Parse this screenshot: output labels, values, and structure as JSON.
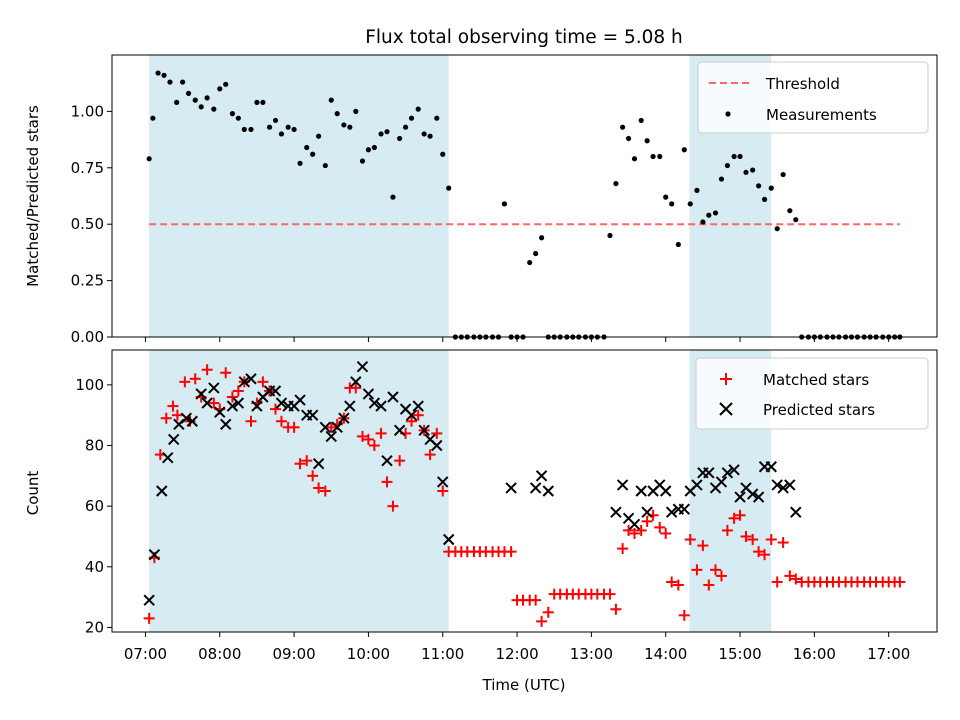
{
  "title": "Flux total observing time = 5.08 h",
  "xlabel": "Time (UTC)",
  "xticks": [
    {
      "t": 7,
      "label": "07:00"
    },
    {
      "t": 8,
      "label": "08:00"
    },
    {
      "t": 9,
      "label": "09:00"
    },
    {
      "t": 10,
      "label": "10:00"
    },
    {
      "t": 11,
      "label": "11:00"
    },
    {
      "t": 12,
      "label": "12:00"
    },
    {
      "t": 13,
      "label": "13:00"
    },
    {
      "t": 14,
      "label": "14:00"
    },
    {
      "t": 15,
      "label": "15:00"
    },
    {
      "t": 16,
      "label": "16:00"
    },
    {
      "t": 17,
      "label": "17:00"
    }
  ],
  "colors": {
    "shade": "#add8e6",
    "threshold": "#ff6666",
    "measurements": "#000000",
    "matched": "#ff0000",
    "predicted": "#000000"
  },
  "chart_data": [
    {
      "type": "scatter",
      "panel": "top",
      "ylabel": "Matched/Predicted stars",
      "ylim": [
        0,
        1.25
      ],
      "yticks": [
        "0.00",
        "0.25",
        "0.50",
        "0.75",
        "1.00"
      ],
      "xlim": [
        6.55,
        17.65
      ],
      "shaded_intervals": [
        [
          7.05,
          11.08
        ],
        [
          14.32,
          15.42
        ]
      ],
      "threshold": {
        "name": "Threshold",
        "y": 0.5,
        "x": [
          7.05,
          17.15
        ]
      },
      "legend": {
        "placement": "top-right",
        "entries": [
          "Threshold",
          "Measurements"
        ]
      },
      "series": [
        {
          "name": "Measurements",
          "x": [
            7.05,
            7.1,
            7.17,
            7.25,
            7.33,
            7.42,
            7.5,
            7.58,
            7.67,
            7.75,
            7.83,
            7.92,
            8.0,
            8.08,
            8.17,
            8.25,
            8.33,
            8.42,
            8.5,
            8.58,
            8.67,
            8.75,
            8.83,
            8.92,
            9.0,
            9.08,
            9.17,
            9.25,
            9.33,
            9.42,
            9.5,
            9.58,
            9.67,
            9.75,
            9.83,
            9.92,
            10.0,
            10.08,
            10.17,
            10.25,
            10.33,
            10.42,
            10.5,
            10.58,
            10.67,
            10.75,
            10.83,
            10.92,
            11.0,
            11.08,
            11.17,
            11.25,
            11.33,
            11.42,
            11.5,
            11.58,
            11.67,
            11.75,
            11.83,
            11.92,
            12.0,
            12.08,
            12.17,
            12.25,
            12.33,
            12.42,
            12.5,
            12.58,
            12.67,
            12.75,
            12.83,
            12.92,
            13.0,
            13.08,
            13.17,
            13.25,
            13.33,
            13.42,
            13.5,
            13.58,
            13.67,
            13.75,
            13.83,
            13.92,
            14.0,
            14.08,
            14.17,
            14.25,
            14.33,
            14.42,
            14.5,
            14.58,
            14.67,
            14.75,
            14.83,
            14.92,
            15.0,
            15.08,
            15.17,
            15.25,
            15.33,
            15.42,
            15.5,
            15.58,
            15.67,
            15.75,
            15.83,
            15.92,
            16.0,
            16.08,
            16.17,
            16.25,
            16.33,
            16.42,
            16.5,
            16.58,
            16.67,
            16.75,
            16.83,
            16.92,
            17.0,
            17.08,
            17.15
          ],
          "y": [
            0.79,
            0.97,
            1.17,
            1.16,
            1.13,
            1.04,
            1.13,
            1.08,
            1.05,
            1.02,
            1.06,
            1.01,
            1.1,
            1.12,
            0.99,
            0.97,
            0.92,
            0.92,
            1.04,
            1.04,
            0.93,
            0.96,
            0.9,
            0.93,
            0.92,
            0.77,
            0.84,
            0.81,
            0.89,
            0.76,
            1.05,
            0.99,
            0.94,
            0.93,
            1.0,
            0.78,
            0.83,
            0.84,
            0.9,
            0.91,
            0.62,
            0.88,
            0.93,
            0.97,
            1.01,
            0.9,
            0.89,
            0.97,
            0.81,
            0.66,
            0.0,
            0.0,
            0.0,
            0.0,
            0.0,
            0.0,
            0.0,
            0.0,
            0.59,
            0.0,
            0.0,
            0.0,
            0.33,
            0.37,
            0.44,
            0.0,
            0.0,
            0.0,
            0.0,
            0.0,
            0.0,
            0.0,
            0.0,
            0.0,
            0.0,
            0.45,
            0.68,
            0.93,
            0.88,
            0.79,
            0.96,
            0.87,
            0.8,
            0.8,
            0.62,
            0.59,
            0.41,
            0.83,
            0.59,
            0.65,
            0.51,
            0.54,
            0.55,
            0.7,
            0.76,
            0.8,
            0.8,
            0.73,
            0.74,
            0.67,
            0.61,
            0.66,
            0.48,
            0.72,
            0.56,
            0.52,
            0.0,
            0.0,
            0.0,
            0.0,
            0.0,
            0.0,
            0.0,
            0.0,
            0.0,
            0.0,
            0.0,
            0.0,
            0.0,
            0.0,
            0.0,
            0.0,
            0.0
          ]
        }
      ]
    },
    {
      "type": "scatter",
      "panel": "bottom",
      "ylabel": "Count",
      "ylim": [
        18.5,
        111.5
      ],
      "yticks": [
        "20",
        "40",
        "60",
        "80",
        "100"
      ],
      "xlim": [
        6.55,
        17.65
      ],
      "shaded_intervals": [
        [
          7.05,
          11.08
        ],
        [
          14.32,
          15.42
        ]
      ],
      "legend": {
        "placement": "top-right",
        "entries": [
          "Matched stars",
          "Predicted stars"
        ]
      },
      "series": [
        {
          "name": "Matched stars",
          "x": [
            7.05,
            7.12,
            7.2,
            7.28,
            7.37,
            7.43,
            7.53,
            7.6,
            7.67,
            7.75,
            7.83,
            7.92,
            8.0,
            8.08,
            8.17,
            8.25,
            8.33,
            8.42,
            8.5,
            8.58,
            8.67,
            8.75,
            8.83,
            8.92,
            9.0,
            9.08,
            9.17,
            9.25,
            9.33,
            9.42,
            9.5,
            9.58,
            9.67,
            9.75,
            9.83,
            9.92,
            10.0,
            10.08,
            10.17,
            10.25,
            10.33,
            10.42,
            10.5,
            10.58,
            10.67,
            10.75,
            10.83,
            10.92,
            11.0,
            11.08,
            11.17,
            11.25,
            11.33,
            11.42,
            11.5,
            11.58,
            11.67,
            11.75,
            11.83,
            11.92,
            12.0,
            12.08,
            12.17,
            12.25,
            12.33,
            12.42,
            12.5,
            12.58,
            12.67,
            12.75,
            12.83,
            12.92,
            13.0,
            13.08,
            13.17,
            13.25,
            13.33,
            13.42,
            13.5,
            13.58,
            13.67,
            13.75,
            13.83,
            13.92,
            14.0,
            14.08,
            14.17,
            14.25,
            14.33,
            14.42,
            14.5,
            14.58,
            14.67,
            14.75,
            14.83,
            14.92,
            15.0,
            15.08,
            15.17,
            15.25,
            15.33,
            15.42,
            15.5,
            15.58,
            15.67,
            15.75,
            15.83,
            15.92,
            16.0,
            16.08,
            16.17,
            16.25,
            16.33,
            16.42,
            16.5,
            16.58,
            16.67,
            16.75,
            16.83,
            16.92,
            17.0,
            17.08,
            17.15
          ],
          "y": [
            23,
            43,
            77,
            89,
            93,
            90,
            101,
            88,
            102,
            96,
            105,
            94,
            92,
            104,
            96,
            98,
            101,
            88,
            94,
            101,
            98,
            92,
            88,
            86,
            86,
            74,
            75,
            70,
            66,
            65,
            86,
            87,
            89,
            99,
            99,
            83,
            82,
            80,
            84,
            68,
            60,
            75,
            84,
            88,
            90,
            85,
            77,
            84,
            65,
            45,
            45,
            45,
            45,
            45,
            45,
            45,
            45,
            45,
            45,
            45,
            29,
            29,
            29,
            29,
            22,
            25,
            31,
            31,
            31,
            31,
            31,
            31,
            31,
            31,
            31,
            31,
            26,
            46,
            52,
            51,
            52,
            55,
            57,
            53,
            51,
            35,
            34,
            24,
            49,
            39,
            47,
            34,
            39,
            37,
            52,
            56,
            57,
            50,
            49,
            45,
            44,
            49,
            35,
            48,
            37,
            36,
            35,
            35,
            35,
            35,
            35,
            35,
            35,
            35,
            35,
            35,
            35,
            35,
            35,
            35,
            35,
            35,
            35
          ]
        },
        {
          "name": "Predicted stars",
          "x": [
            7.05,
            7.12,
            7.22,
            7.3,
            7.38,
            7.45,
            7.55,
            7.63,
            7.75,
            7.83,
            7.92,
            8.0,
            8.08,
            8.17,
            8.25,
            8.33,
            8.42,
            8.5,
            8.58,
            8.67,
            8.75,
            8.83,
            8.92,
            9.0,
            9.08,
            9.17,
            9.25,
            9.33,
            9.42,
            9.5,
            9.58,
            9.67,
            9.75,
            9.83,
            9.92,
            10.0,
            10.08,
            10.17,
            10.25,
            10.33,
            10.42,
            10.5,
            10.58,
            10.67,
            10.75,
            10.83,
            10.92,
            11.0,
            11.08,
            11.92,
            12.25,
            12.33,
            12.42,
            13.33,
            13.42,
            13.5,
            13.58,
            13.67,
            13.75,
            13.83,
            13.92,
            14.0,
            14.08,
            14.17,
            14.25,
            14.33,
            14.42,
            14.5,
            14.58,
            14.67,
            14.75,
            14.83,
            14.92,
            15.0,
            15.08,
            15.17,
            15.25,
            15.33,
            15.42,
            15.5,
            15.58,
            15.67,
            15.75
          ],
          "y": [
            29,
            44,
            65,
            76,
            82,
            87,
            89,
            88,
            97,
            94,
            99,
            91,
            87,
            93,
            94,
            101,
            102,
            93,
            96,
            98,
            98,
            94,
            93,
            93,
            95,
            90,
            90,
            74,
            86,
            83,
            86,
            89,
            93,
            101,
            106,
            97,
            94,
            93,
            75,
            96,
            85,
            92,
            90,
            93,
            85,
            82,
            80,
            68,
            49,
            66,
            66,
            70,
            65,
            58,
            67,
            56,
            54,
            65,
            58,
            65,
            67,
            65,
            58,
            59,
            59,
            65,
            67,
            71,
            71,
            66,
            68,
            71,
            72,
            63,
            66,
            64,
            63,
            73,
            73,
            67,
            66,
            67,
            58
          ]
        }
      ]
    }
  ]
}
